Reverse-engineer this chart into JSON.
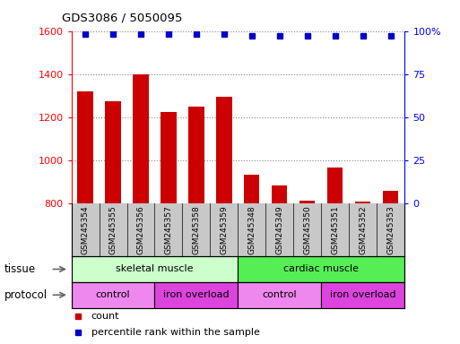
{
  "title": "GDS3086 / 5050095",
  "categories": [
    "GSM245354",
    "GSM245355",
    "GSM245356",
    "GSM245357",
    "GSM245358",
    "GSM245359",
    "GSM245348",
    "GSM245349",
    "GSM245350",
    "GSM245351",
    "GSM245352",
    "GSM245353"
  ],
  "bar_values": [
    1320,
    1275,
    1400,
    1225,
    1250,
    1295,
    930,
    880,
    810,
    965,
    805,
    855
  ],
  "percentile_values": [
    98,
    98,
    98,
    98,
    98,
    98,
    97,
    97,
    97,
    97,
    97,
    97
  ],
  "ylim_left": [
    800,
    1600
  ],
  "ylim_right": [
    0,
    100
  ],
  "yticks_left": [
    800,
    1000,
    1200,
    1400,
    1600
  ],
  "yticks_right": [
    0,
    25,
    50,
    75,
    100
  ],
  "bar_color": "#cc0000",
  "dot_color": "#0000cc",
  "tissue_skeletal": "skeletal muscle",
  "tissue_cardiac": "cardiac muscle",
  "protocol_control1": "control",
  "protocol_iron1": "iron overload",
  "protocol_control2": "control",
  "protocol_iron2": "iron overload",
  "tissue_label": "tissue",
  "protocol_label": "protocol",
  "legend_count": "count",
  "legend_percentile": "percentile rank within the sample",
  "skeletal_color": "#ccffcc",
  "cardiac_color": "#55ee55",
  "control_color": "#ee88ee",
  "iron_color": "#dd44dd",
  "n_skeletal": 6,
  "n_cardiac": 6,
  "n_control_skel": 3,
  "n_iron_skel": 3,
  "n_control_card": 3,
  "n_iron_card": 3
}
